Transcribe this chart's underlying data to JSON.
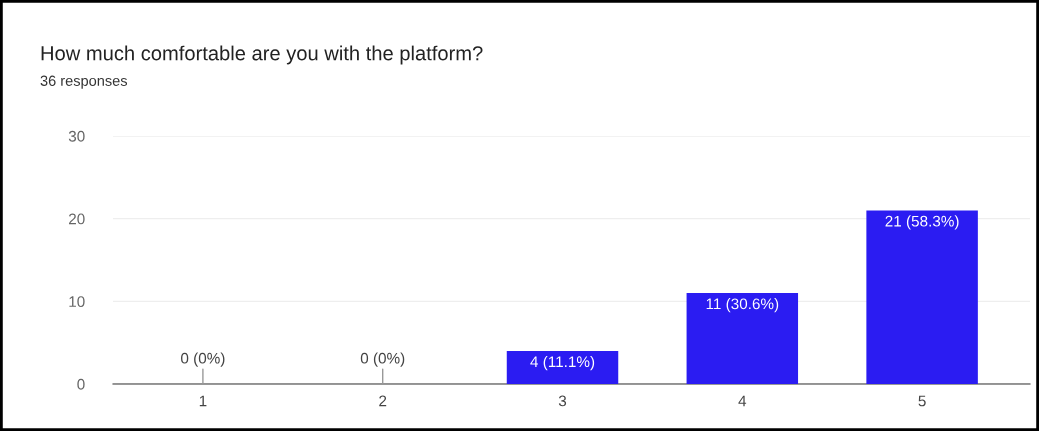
{
  "chart_data": {
    "type": "bar",
    "title": "How much comfortable are you with the platform?",
    "subtitle": "36 responses",
    "categories": [
      "1",
      "2",
      "3",
      "4",
      "5"
    ],
    "values": [
      0,
      0,
      4,
      11,
      21
    ],
    "value_labels": [
      "0 (0%)",
      "0 (0%)",
      "4 (11.1%)",
      "11 (30.6%)",
      "21 (58.3%)"
    ],
    "color": "#2b1cf2",
    "ylim": [
      0,
      30
    ],
    "yticks": [
      0,
      10,
      20,
      30
    ],
    "grid": "y",
    "legend": false
  }
}
